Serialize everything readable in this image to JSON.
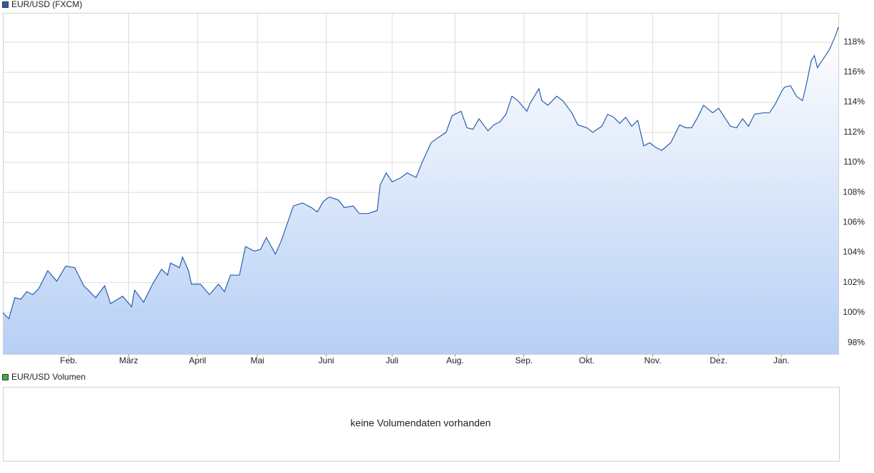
{
  "chart_data": {
    "type": "line",
    "series": [
      {
        "name": "EUR/USD (FXCM)",
        "color": "#2a5db0",
        "x": [
          0,
          2,
          4,
          6,
          8,
          10,
          12,
          15,
          18,
          21,
          24,
          27,
          31,
          34,
          36,
          40,
          43,
          44,
          47,
          50,
          53,
          55,
          56,
          59,
          60,
          62,
          63,
          66,
          69,
          72,
          74,
          76,
          79,
          81,
          84,
          86,
          88,
          91,
          93,
          97,
          100,
          103,
          105,
          107,
          109,
          112,
          114,
          117,
          119,
          122,
          125,
          126,
          128,
          130,
          133,
          135,
          138,
          140,
          143,
          145,
          148,
          150,
          153,
          155,
          157,
          159,
          162,
          164,
          166,
          168,
          170,
          172,
          175,
          176,
          179,
          180,
          182,
          185,
          187,
          190,
          192,
          195,
          197,
          200,
          202,
          204,
          206,
          208,
          210,
          212,
          214,
          216,
          218,
          220,
          223,
          226,
          228,
          230,
          232,
          234,
          237,
          239,
          241,
          243,
          245,
          247,
          249,
          251,
          254,
          256,
          258,
          260,
          261,
          263,
          265,
          267,
          268,
          270,
          271,
          272,
          274,
          276,
          278,
          279
        ],
        "values": [
          100.0,
          99.6,
          101.0,
          100.9,
          101.4,
          101.2,
          101.6,
          102.8,
          102.1,
          103.1,
          103.0,
          101.8,
          101.0,
          101.8,
          100.6,
          101.1,
          100.4,
          101.5,
          100.7,
          101.9,
          102.9,
          102.5,
          103.3,
          103.0,
          103.7,
          102.8,
          101.9,
          101.9,
          101.2,
          101.9,
          101.4,
          102.5,
          102.5,
          104.4,
          104.1,
          104.2,
          105.0,
          103.9,
          104.8,
          107.1,
          107.3,
          107.0,
          106.7,
          107.4,
          107.7,
          107.5,
          107.0,
          107.1,
          106.6,
          106.6,
          106.8,
          108.5,
          109.3,
          108.7,
          109.0,
          109.3,
          109.0,
          110.0,
          111.3,
          111.6,
          112.0,
          113.1,
          113.4,
          112.3,
          112.2,
          112.9,
          112.1,
          112.5,
          112.7,
          113.2,
          114.4,
          114.1,
          113.4,
          113.9,
          114.9,
          114.1,
          113.8,
          114.4,
          114.1,
          113.3,
          112.5,
          112.3,
          112.0,
          112.4,
          113.2,
          113.0,
          112.6,
          113.0,
          112.4,
          112.8,
          111.1,
          111.3,
          111.0,
          110.8,
          111.3,
          112.5,
          112.3,
          112.3,
          113.0,
          113.8,
          113.3,
          113.6,
          113.0,
          112.4,
          112.3,
          112.9,
          112.4,
          113.2,
          113.3,
          113.3,
          113.9,
          114.7,
          115.0,
          115.1,
          114.4,
          114.1,
          114.9,
          116.8,
          117.1,
          116.3,
          116.9,
          117.5,
          118.4,
          119.0
        ]
      }
    ],
    "xlim": [
      0,
      279
    ],
    "xticks": [
      {
        "value": 22,
        "label": "Feb."
      },
      {
        "value": 42,
        "label": "März"
      },
      {
        "value": 65,
        "label": "April"
      },
      {
        "value": 85,
        "label": "Mai"
      },
      {
        "value": 108,
        "label": "Juni"
      },
      {
        "value": 130,
        "label": "Juli"
      },
      {
        "value": 151,
        "label": "Aug."
      },
      {
        "value": 174,
        "label": "Sep."
      },
      {
        "value": 195,
        "label": "Okt."
      },
      {
        "value": 217,
        "label": "Nov."
      },
      {
        "value": 239,
        "label": "Dez."
      },
      {
        "value": 260,
        "label": "Jan."
      }
    ],
    "ylim": [
      97.25,
      119.95
    ],
    "yticks": [
      {
        "value": 98,
        "label": "98%"
      },
      {
        "value": 100,
        "label": "100%"
      },
      {
        "value": 102,
        "label": "102%"
      },
      {
        "value": 104,
        "label": "104%"
      },
      {
        "value": 106,
        "label": "106%"
      },
      {
        "value": 108,
        "label": "108%"
      },
      {
        "value": 110,
        "label": "110%"
      },
      {
        "value": 112,
        "label": "112%"
      },
      {
        "value": 114,
        "label": "114%"
      },
      {
        "value": 116,
        "label": "116%"
      },
      {
        "value": 118,
        "label": "118%"
      }
    ],
    "grid": true,
    "area": true
  },
  "volume_panel": {
    "legend": "EUR/USD Volumen",
    "color": "#3cb043",
    "message": "keine Volumendaten vorhanden"
  }
}
